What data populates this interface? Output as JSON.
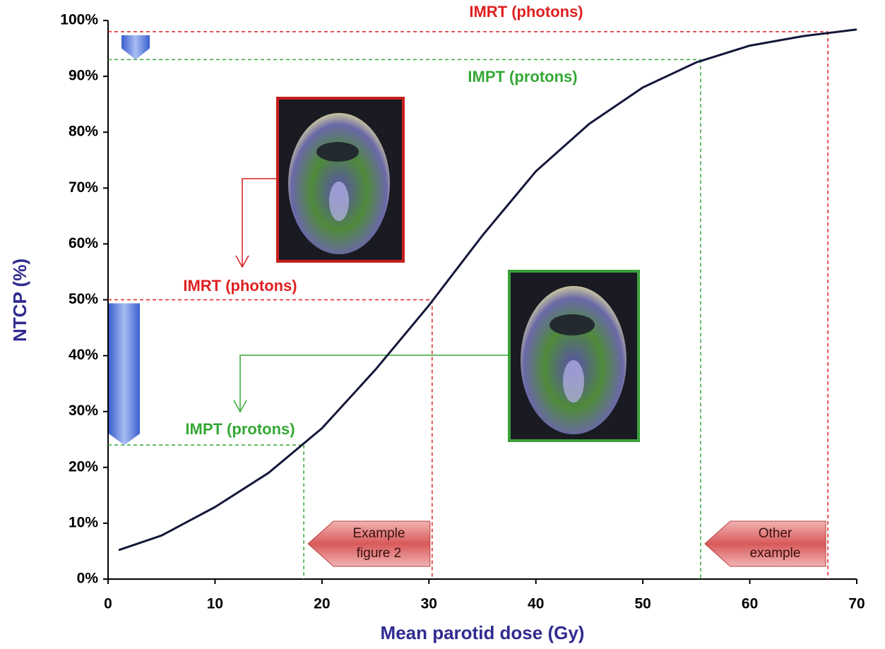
{
  "chart_data": {
    "type": "line",
    "x_label": "Mean parotid dose (Gy)",
    "y_label": "NTCP (%)",
    "xlim": [
      0,
      70
    ],
    "xticks": [
      0,
      10,
      20,
      30,
      40,
      50,
      60,
      70
    ],
    "ylim": [
      0,
      100
    ],
    "yticks": [
      {
        "value": 0,
        "label": "0%"
      },
      {
        "value": 10,
        "label": "10%"
      },
      {
        "value": 20,
        "label": "20%"
      },
      {
        "value": 30,
        "label": "30%"
      },
      {
        "value": 40,
        "label": "40%"
      },
      {
        "value": 50,
        "label": "50%"
      },
      {
        "value": 60,
        "label": "60%"
      },
      {
        "value": 70,
        "label": "70%"
      },
      {
        "value": 80,
        "label": "80%"
      },
      {
        "value": 90,
        "label": "90%"
      },
      {
        "value": 100,
        "label": "100%"
      }
    ],
    "series": [
      {
        "color": "#14173a",
        "x": [
          1,
          5,
          10,
          15,
          20,
          25,
          30,
          35,
          40,
          45,
          50,
          55,
          60,
          65,
          70
        ],
        "values": [
          5.2,
          7.8,
          12.9,
          19,
          27,
          37.5,
          49,
          61.5,
          73,
          81.5,
          88,
          92.5,
          95.5,
          97.2,
          98.4
        ]
      }
    ],
    "reference_lines": [
      {
        "label": "IMRT (photons)",
        "color": "#e02020",
        "x": 30.3,
        "y": 50
      },
      {
        "label": "IMPT (protons)",
        "color": "#35a835",
        "x": 18.3,
        "y": 24
      },
      {
        "label": "IMRT (photons)",
        "color": "#e02020",
        "x": 67.3,
        "y": 98
      },
      {
        "label": "IMPT (protons)",
        "color": "#35a835",
        "x": 55.4,
        "y": 93
      }
    ],
    "callouts": [
      {
        "lines": [
          "Example",
          "figure 2"
        ]
      },
      {
        "lines": [
          "Other",
          "example"
        ]
      }
    ]
  }
}
